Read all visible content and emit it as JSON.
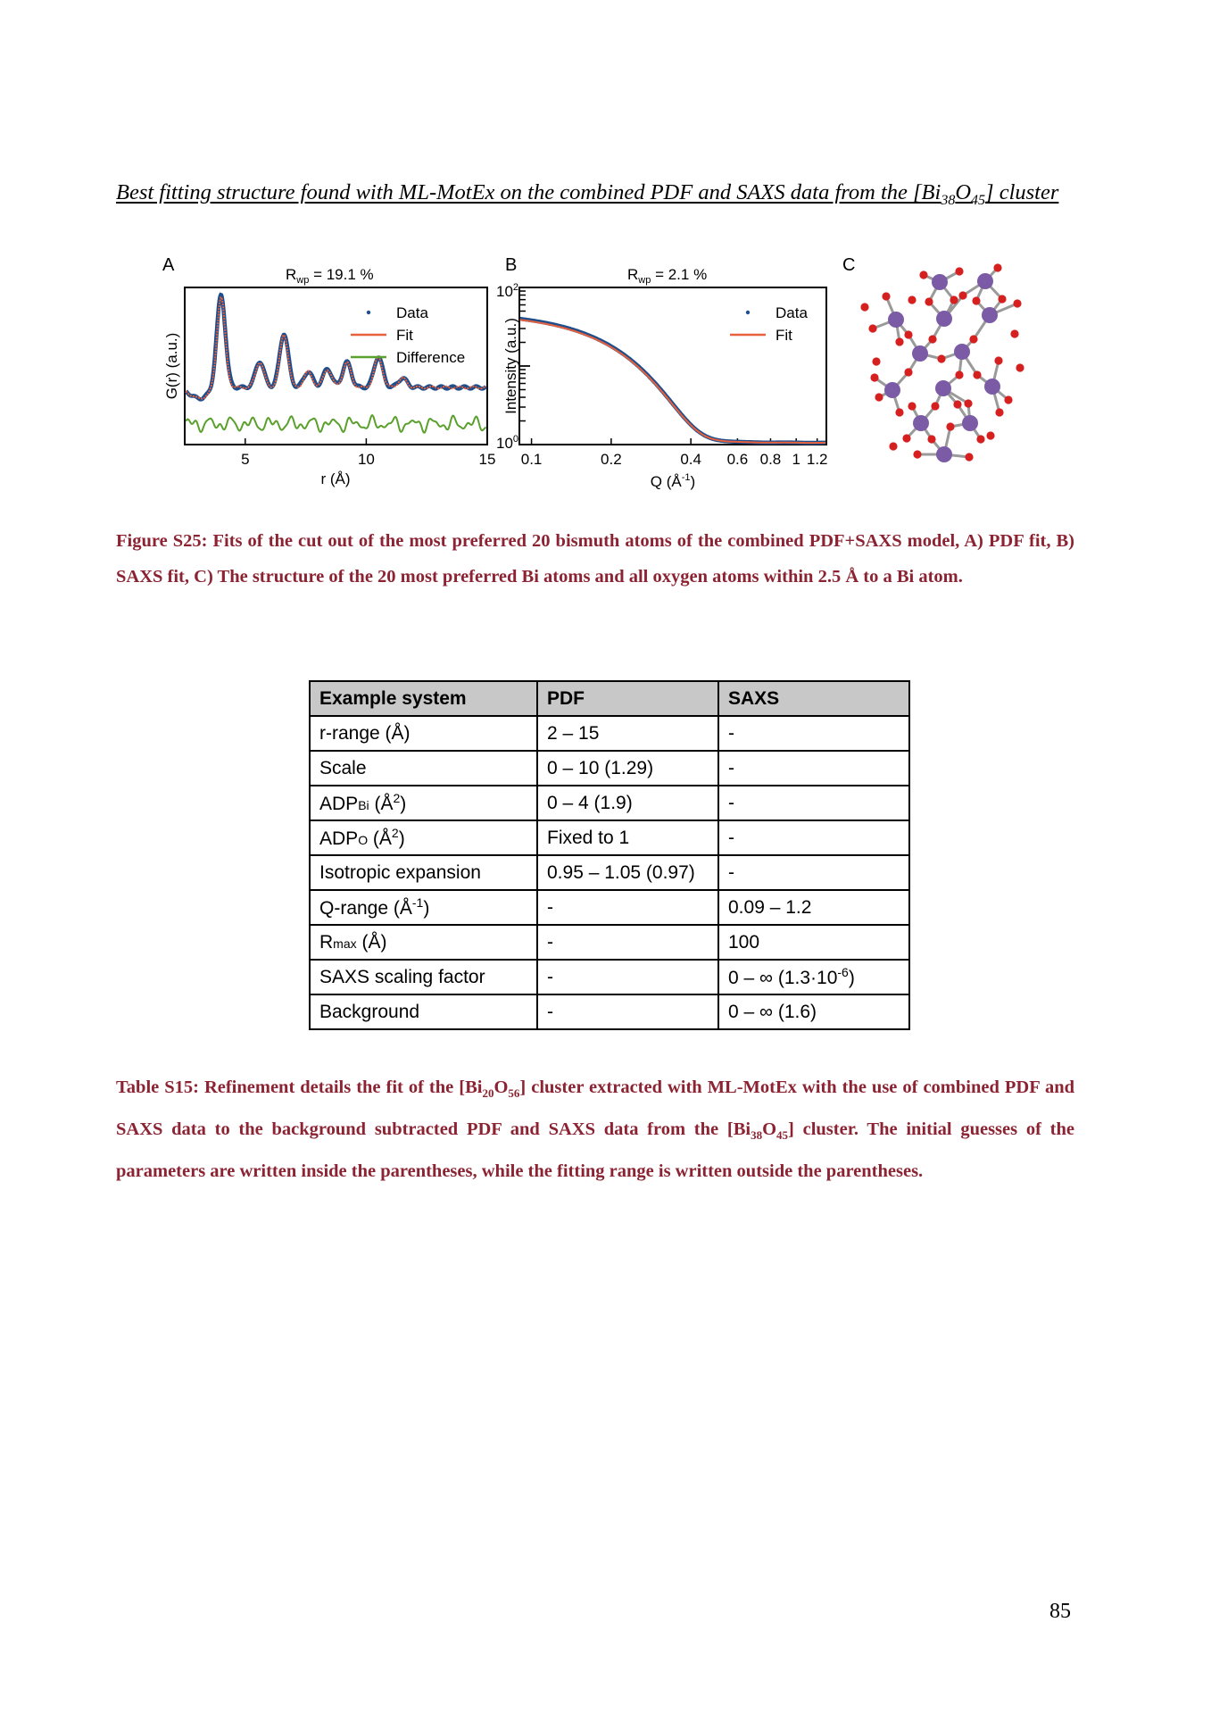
{
  "heading": {
    "text": "Best fitting structure found with ML-MotEx on the combined PDF and SAXS data from the [Bi",
    "sub1": "38",
    "mid": "O",
    "sub2": "45",
    "end": "] cluster"
  },
  "panels": {
    "a": "A",
    "b": "B",
    "c": "C"
  },
  "chart_data": [
    {
      "type": "line",
      "panel": "A",
      "title_main": "R",
      "title_sub": "wp",
      "title_rest": " = 19.1 %",
      "xlabel": "r (Å)",
      "ylabel": "G(r) (a.u.)",
      "xlim": [
        2.5,
        15
      ],
      "xticks": [
        5,
        10,
        15
      ],
      "legend_position": "top-right",
      "series": [
        {
          "name": "Data",
          "color": "#1f4e8c",
          "style": "dots"
        },
        {
          "name": "Fit",
          "color": "#e8603c",
          "style": "line"
        },
        {
          "name": "Difference",
          "color": "#5aa02c",
          "style": "line"
        }
      ],
      "peaks": [
        {
          "r": 4.0,
          "height": 1.0
        },
        {
          "r": 5.6,
          "height": 0.28
        },
        {
          "r": 6.6,
          "height": 0.58
        },
        {
          "r": 7.6,
          "height": 0.17
        },
        {
          "r": 8.4,
          "height": 0.2
        },
        {
          "r": 9.2,
          "height": 0.27
        },
        {
          "r": 10.5,
          "height": 0.33
        },
        {
          "r": 11.5,
          "height": 0.1
        }
      ]
    },
    {
      "type": "line",
      "panel": "B",
      "title_main": "R",
      "title_sub": "wp",
      "title_rest": " = 2.1 %",
      "xlabel_main": "Q (Å",
      "xlabel_sup": "-1",
      "xlabel_end": ")",
      "ylabel": "Intensity (a.u.)",
      "xscale": "log",
      "yscale": "log",
      "xlim": [
        0.09,
        1.3
      ],
      "ylim": [
        1,
        100
      ],
      "xticks": [
        "0.1",
        "0.2",
        "0.4",
        "0.6",
        "0.8",
        "1",
        "1.2"
      ],
      "ytick_top": {
        "base": "10",
        "exp": "2"
      },
      "ytick_bottom": {
        "base": "10",
        "exp": "0"
      },
      "legend_position": "top-right",
      "series": [
        {
          "name": "Data",
          "color": "#1f4e8c",
          "style": "dots"
        },
        {
          "name": "Fit",
          "color": "#e8603c",
          "style": "line"
        }
      ]
    }
  ],
  "figure_caption": "Figure S25: Fits of the cut out of the most preferred 20 bismuth atoms of the combined PDF+SAXS model, A) PDF fit, B) SAXS fit, C) The structure of the 20 most preferred Bi atoms and all oxygen atoms within 2.5 Å to a Bi atom.",
  "table": {
    "headers": [
      "Example system",
      "PDF",
      "SAXS"
    ],
    "rows": [
      {
        "label": "r-range (Å)",
        "pdf": "2 – 15",
        "saxs": "-"
      },
      {
        "label": "Scale",
        "pdf": "0 – 10 (1.29)",
        "saxs": "-"
      },
      {
        "label_main": "ADP",
        "label_sub": "Bi",
        "label_end": " (Å",
        "label_sup": "2",
        "label_close": ")",
        "pdf": "0 – 4 (1.9)",
        "saxs": "-"
      },
      {
        "label_main": "ADP",
        "label_sub": "O",
        "label_end": " (Å",
        "label_sup": "2",
        "label_close": ")",
        "pdf": "Fixed to 1",
        "saxs": "-"
      },
      {
        "label": "Isotropic expansion",
        "pdf": "0.95 – 1.05 (0.97)",
        "saxs": "-"
      },
      {
        "label_main": "Q-range (Å",
        "label_sup": "-1",
        "label_close": ")",
        "pdf": "-",
        "saxs": "0.09 – 1.2"
      },
      {
        "label_main": "R",
        "label_sub": "max",
        "label_end": " (Å)",
        "pdf": "-",
        "saxs": "100"
      },
      {
        "label": "SAXS scaling factor",
        "pdf": "-",
        "saxs_main": "0 – ∞ (1.3·10",
        "saxs_sup": "-6",
        "saxs_close": ")"
      },
      {
        "label": "Background",
        "pdf": "-",
        "saxs": "0 – ∞ (1.6)"
      }
    ]
  },
  "table_caption": {
    "p1": "Table S15: Refinement details the fit of the [Bi",
    "s1": "20",
    "p2": "O",
    "s2": "56",
    "p3": "] cluster extracted with ML-MotEx with the use of combined PDF and SAXS data to the background subtracted PDF and SAXS data from the [Bi",
    "s3": "38",
    "p4": "O",
    "s4": "45",
    "p5": "] cluster. The initial guesses of the parameters are written inside the parentheses, while the fitting range is written outside the parentheses."
  },
  "page_number": "85",
  "colors": {
    "caption": "#8b2332",
    "bismuth": "#7b5aa6",
    "oxygen": "#d62020",
    "bond": "#9a9a9a"
  }
}
